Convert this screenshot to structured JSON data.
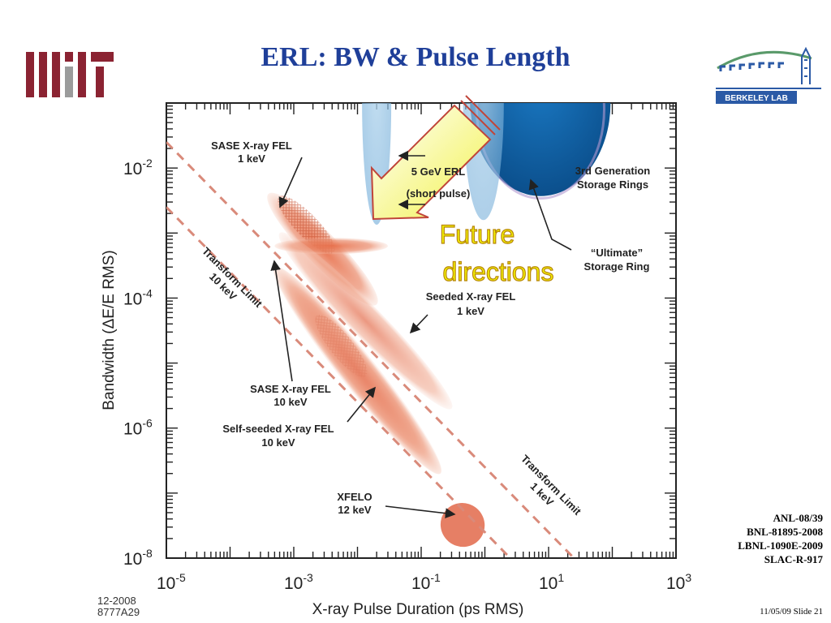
{
  "slide": {
    "title": "ERL: BW & Pulse Length",
    "references": [
      "ANL-08/39",
      "BNL-81895-2008",
      "LBNL-1090E-2009",
      "SLAC-R-917"
    ],
    "date_code": [
      "12-2008",
      "8777A29"
    ],
    "footer": "11/05/09 Slide 21",
    "logos": {
      "left": "MIT",
      "right": "BERKELEY LAB"
    }
  },
  "colors": {
    "title": "#1f3f99",
    "fel": "#e07a55",
    "storage_ring": "#0b63a8",
    "light_blue": "#8fc0e0",
    "limit_line": "#d98a7a",
    "arrow_yellow": "#f4f25a",
    "future_text": "#f2f200"
  },
  "chart_data": {
    "type": "scatter",
    "xscale": "log",
    "yscale": "log",
    "xlim": [
      1e-05,
      1000
    ],
    "ylim": [
      1e-08,
      0.1
    ],
    "x_ticks": [
      {
        "value": 1e-05,
        "base": "10",
        "exp": "-5"
      },
      {
        "value": 0.001,
        "base": "10",
        "exp": "-3"
      },
      {
        "value": 0.1,
        "base": "10",
        "exp": "-1"
      },
      {
        "value": 10,
        "base": "10",
        "exp": "1"
      },
      {
        "value": 1000,
        "base": "10",
        "exp": "3"
      }
    ],
    "y_ticks": [
      {
        "value": 1e-08,
        "base": "10",
        "exp": "-8"
      },
      {
        "value": 1e-06,
        "base": "10",
        "exp": "-6"
      },
      {
        "value": 0.0001,
        "base": "10",
        "exp": "-4"
      },
      {
        "value": 0.01,
        "base": "10",
        "exp": "-2"
      }
    ],
    "xlabel": "X-ray Pulse Duration (ps RMS)",
    "ylabel": "Bandwidth  (ΔE/E RMS)",
    "regions": [
      {
        "label": "SASE X-ray FEL 1 keV",
        "x_range": [
          0.0004,
          0.02
        ],
        "y_range": [
          8e-05,
          0.004
        ],
        "color": "#e07a55"
      },
      {
        "label": "5 GeV ERL (short pulse)",
        "x_range": [
          0.0005,
          0.03
        ],
        "y_range": [
          0.0005,
          0.0008
        ],
        "color": "#e07a55"
      },
      {
        "label": "Seeded X-ray FEL 1 keV",
        "x_range": [
          0.0006,
          0.3
        ],
        "y_range": [
          2e-06,
          0.001
        ],
        "color": "#e07a55"
      },
      {
        "label": "SASE X-ray FEL 10 keV",
        "x_range": [
          0.0005,
          0.2
        ],
        "y_range": [
          2e-07,
          0.0003
        ],
        "color": "#e07a55"
      },
      {
        "label": "Self-seeded X-ray FEL 10 keV",
        "x_range": [
          0.0005,
          0.2
        ],
        "y_range": [
          2e-07,
          0.0003
        ],
        "color": "#e07a55"
      },
      {
        "label": "XFELO 12 keV",
        "x_range": [
          0.2,
          1
        ],
        "y_range": [
          1.5e-08,
          7e-08
        ],
        "color": "#e07a55"
      },
      {
        "label": "3rd Generation Storage Rings",
        "x_range": [
          1,
          100
        ],
        "y_range": [
          0.005,
          0.1
        ],
        "color": "#0b63a8"
      },
      {
        "label": "\"Ultimate\" Storage Ring",
        "x_range": [
          0.3,
          3
        ],
        "y_range": [
          0.001,
          0.1
        ],
        "color": "#8fc0e0"
      }
    ],
    "transform_limits": [
      {
        "label": "Transform Limit 10 keV",
        "points": [
          [
            1e-05,
            0.0025
          ],
          [
            2.5,
            1e-08
          ]
        ]
      },
      {
        "label": "Transform Limit 1 keV",
        "points": [
          [
            1e-05,
            0.025
          ],
          [
            25,
            1e-08
          ]
        ]
      }
    ],
    "annotations": [
      {
        "lines": [
          "SASE X-ray FEL",
          "1 keV"
        ]
      },
      {
        "lines": [
          "5 GeV ERL",
          "(short pulse)"
        ]
      },
      {
        "lines": [
          "3rd Generation",
          "Storage Rings"
        ]
      },
      {
        "lines": [
          "“Ultimate”",
          "Storage Ring"
        ]
      },
      {
        "lines": [
          "Seeded X-ray FEL",
          "1 keV"
        ]
      },
      {
        "lines": [
          "SASE X-ray FEL",
          "10 keV"
        ]
      },
      {
        "lines": [
          "Self-seeded X-ray FEL",
          "10 keV"
        ]
      },
      {
        "lines": [
          "XFELO",
          "12 keV"
        ]
      },
      {
        "lines": [
          "Transform Limit",
          "10 keV"
        ]
      },
      {
        "lines": [
          "Transform Limit",
          "1 keV"
        ]
      },
      {
        "lines": [
          "Future",
          "directions"
        ]
      }
    ]
  }
}
